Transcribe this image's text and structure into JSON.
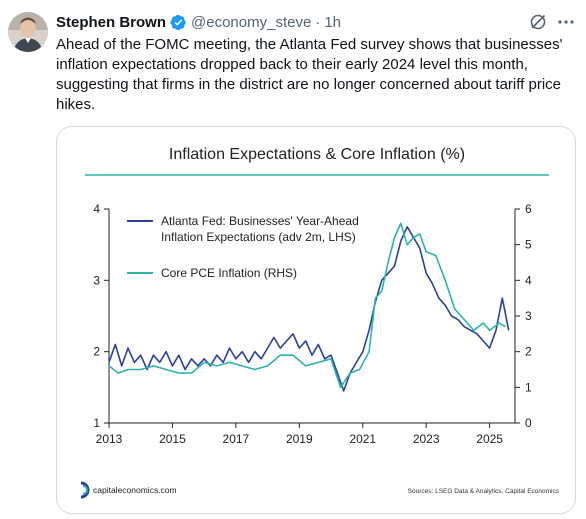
{
  "tweet": {
    "author_name": "Stephen Brown",
    "handle": "@economy_steve",
    "separator": "·",
    "time": "1h",
    "text": "Ahead of the FOMC meeting, the Atlanta Fed survey shows that businesses' inflation expectations dropped back to their early 2024 level this month, suggesting that firms in the district are no longer concerned about tariff price hikes.",
    "icons": {
      "verified": "verified-badge-icon",
      "grok": "grok-icon",
      "more": "more-options-icon"
    },
    "colors": {
      "verified": "#1d9bf0",
      "muted": "#536471"
    }
  },
  "image_footer": {
    "brand": "capitaleconomics.com",
    "sources": "Sources: LSEG Data & Analytics, Capital Economics"
  },
  "chart_data": {
    "type": "line",
    "title": "Inflation Expectations & Core Inflation (%)",
    "x_ticks": [
      "2013",
      "2015",
      "2017",
      "2019",
      "2021",
      "2023",
      "2025"
    ],
    "xlim": [
      2013,
      2025.8
    ],
    "ylim_left": [
      1,
      4
    ],
    "ylim_right": [
      0,
      6
    ],
    "y_ticks_left": [
      "1",
      "2",
      "3",
      "4"
    ],
    "y_ticks_right": [
      "0",
      "1",
      "2",
      "3",
      "4",
      "5",
      "6"
    ],
    "grid": false,
    "legend_position": "top-left",
    "series": [
      {
        "name": "Atlanta Fed: Businesses' Year-Ahead Inflation Expectations (adv 2m, LHS)",
        "legend_lines": [
          "Atlanta Fed: Businesses' Year-Ahead",
          "Inflation Expectations (adv 2m, LHS)"
        ],
        "axis": "left",
        "color": "#2c3f9e",
        "points": [
          [
            2013.0,
            1.85
          ],
          [
            2013.2,
            2.1
          ],
          [
            2013.4,
            1.8
          ],
          [
            2013.6,
            2.05
          ],
          [
            2013.8,
            1.85
          ],
          [
            2014.0,
            1.95
          ],
          [
            2014.2,
            1.75
          ],
          [
            2014.4,
            1.95
          ],
          [
            2014.6,
            1.85
          ],
          [
            2014.8,
            2.0
          ],
          [
            2015.0,
            1.8
          ],
          [
            2015.2,
            1.95
          ],
          [
            2015.4,
            1.75
          ],
          [
            2015.6,
            1.9
          ],
          [
            2015.8,
            1.8
          ],
          [
            2016.0,
            1.9
          ],
          [
            2016.2,
            1.8
          ],
          [
            2016.4,
            1.95
          ],
          [
            2016.6,
            1.85
          ],
          [
            2016.8,
            2.05
          ],
          [
            2017.0,
            1.9
          ],
          [
            2017.2,
            2.0
          ],
          [
            2017.4,
            1.85
          ],
          [
            2017.6,
            2.0
          ],
          [
            2017.8,
            1.9
          ],
          [
            2018.0,
            2.05
          ],
          [
            2018.2,
            2.2
          ],
          [
            2018.4,
            2.05
          ],
          [
            2018.6,
            2.15
          ],
          [
            2018.8,
            2.25
          ],
          [
            2019.0,
            2.05
          ],
          [
            2019.2,
            2.15
          ],
          [
            2019.4,
            1.95
          ],
          [
            2019.6,
            2.1
          ],
          [
            2019.8,
            1.9
          ],
          [
            2020.0,
            1.95
          ],
          [
            2020.2,
            1.7
          ],
          [
            2020.4,
            1.45
          ],
          [
            2020.6,
            1.7
          ],
          [
            2020.8,
            1.85
          ],
          [
            2021.0,
            2.0
          ],
          [
            2021.2,
            2.3
          ],
          [
            2021.4,
            2.7
          ],
          [
            2021.6,
            3.0
          ],
          [
            2021.8,
            3.1
          ],
          [
            2022.0,
            3.2
          ],
          [
            2022.2,
            3.55
          ],
          [
            2022.4,
            3.75
          ],
          [
            2022.6,
            3.6
          ],
          [
            2022.8,
            3.45
          ],
          [
            2023.0,
            3.1
          ],
          [
            2023.2,
            2.95
          ],
          [
            2023.4,
            2.75
          ],
          [
            2023.6,
            2.65
          ],
          [
            2023.8,
            2.5
          ],
          [
            2024.0,
            2.45
          ],
          [
            2024.2,
            2.35
          ],
          [
            2024.4,
            2.3
          ],
          [
            2024.6,
            2.25
          ],
          [
            2024.8,
            2.15
          ],
          [
            2025.0,
            2.05
          ],
          [
            2025.2,
            2.3
          ],
          [
            2025.4,
            2.75
          ],
          [
            2025.6,
            2.3
          ]
        ]
      },
      {
        "name": "Core PCE Inflation (RHS)",
        "legend_lines": [
          "Core PCE Inflation (RHS)"
        ],
        "axis": "right",
        "color": "#2bb5a8",
        "points": [
          [
            2013.0,
            1.6
          ],
          [
            2013.3,
            1.4
          ],
          [
            2013.6,
            1.5
          ],
          [
            2014.0,
            1.5
          ],
          [
            2014.4,
            1.6
          ],
          [
            2014.8,
            1.5
          ],
          [
            2015.2,
            1.4
          ],
          [
            2015.6,
            1.4
          ],
          [
            2016.0,
            1.7
          ],
          [
            2016.4,
            1.6
          ],
          [
            2016.8,
            1.7
          ],
          [
            2017.2,
            1.6
          ],
          [
            2017.6,
            1.5
          ],
          [
            2018.0,
            1.6
          ],
          [
            2018.4,
            1.9
          ],
          [
            2018.8,
            1.9
          ],
          [
            2019.2,
            1.6
          ],
          [
            2019.6,
            1.7
          ],
          [
            2020.0,
            1.8
          ],
          [
            2020.3,
            1.0
          ],
          [
            2020.6,
            1.4
          ],
          [
            2020.9,
            1.5
          ],
          [
            2021.2,
            2.0
          ],
          [
            2021.4,
            3.5
          ],
          [
            2021.6,
            3.7
          ],
          [
            2021.8,
            4.5
          ],
          [
            2022.0,
            5.2
          ],
          [
            2022.2,
            5.6
          ],
          [
            2022.4,
            5.0
          ],
          [
            2022.6,
            5.2
          ],
          [
            2022.8,
            5.3
          ],
          [
            2023.0,
            4.8
          ],
          [
            2023.3,
            4.7
          ],
          [
            2023.6,
            4.0
          ],
          [
            2023.9,
            3.2
          ],
          [
            2024.2,
            2.9
          ],
          [
            2024.5,
            2.6
          ],
          [
            2024.8,
            2.8
          ],
          [
            2025.0,
            2.6
          ],
          [
            2025.3,
            2.8
          ],
          [
            2025.5,
            2.7
          ]
        ]
      }
    ]
  }
}
